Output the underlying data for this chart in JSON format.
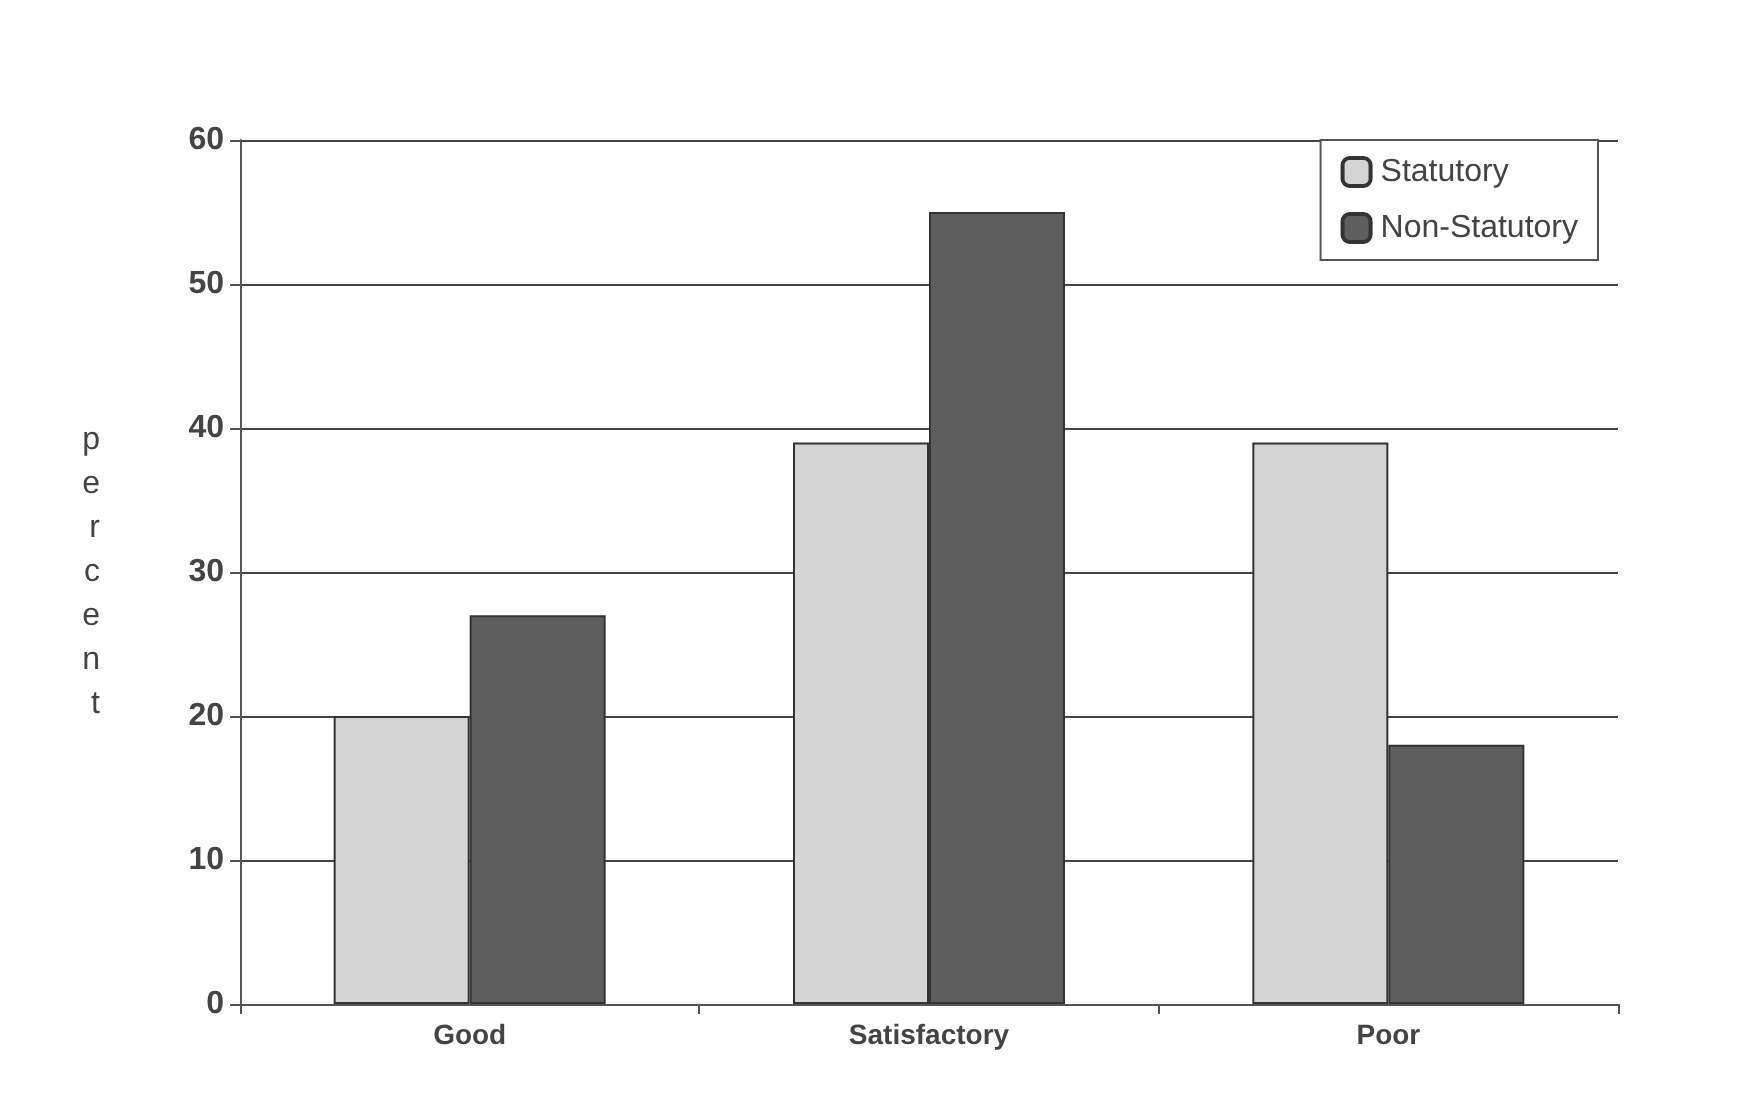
{
  "chart_data": {
    "type": "bar",
    "categories": [
      "Good",
      "Satisfactory",
      "Poor"
    ],
    "series": [
      {
        "name": "Statutory",
        "color": "#d4d4d4",
        "values": [
          20,
          39,
          39
        ]
      },
      {
        "name": "Non-Statutory",
        "color": "#5e5e5e",
        "values": [
          27,
          55,
          18
        ]
      }
    ],
    "ylabel": "percent",
    "ylim": [
      0,
      60
    ],
    "yticks": [
      0,
      10,
      20,
      30,
      40,
      50,
      60
    ],
    "grid": "y",
    "legend": "top right"
  }
}
